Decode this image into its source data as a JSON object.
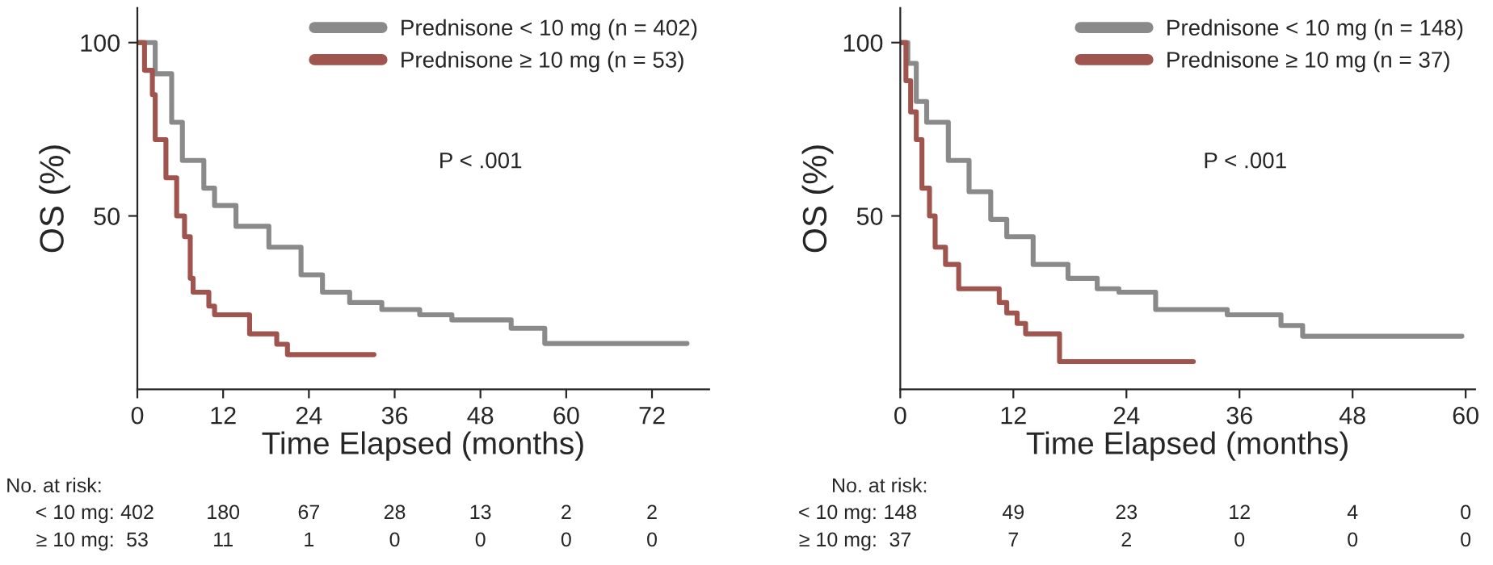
{
  "chart_data": [
    {
      "type": "step",
      "ylabel": "OS (%)",
      "xlabel": "Time Elapsed (months)",
      "xlim": [
        0,
        80
      ],
      "xticks": [
        0,
        12,
        24,
        36,
        48,
        60,
        72
      ],
      "ylim": [
        0,
        110
      ],
      "yticks": [
        50,
        100
      ],
      "legend": "top right",
      "marker": "none",
      "line_style": "solid",
      "annotations": [
        "P < .001",
        "No. at risk:",
        "< 10 mg:",
        "402",
        "180",
        "67",
        "28",
        "13",
        "2",
        "2",
        "≥ 10 mg:",
        "53",
        "11",
        "1",
        "0",
        "0",
        "0",
        "0"
      ],
      "series": [
        {
          "name": "Prednisone < 10 mg (n = 402)",
          "color": "#8a8a8a",
          "x": [
            0,
            2.5,
            4.8,
            6.3,
            9.3,
            10.8,
            13.8,
            18.4,
            22.9,
            25.9,
            29.7,
            34.2,
            39.5,
            44,
            52.3,
            57,
            76.9
          ],
          "values": [
            100,
            91,
            77,
            66,
            58,
            53,
            47,
            41,
            33,
            28,
            25,
            23,
            21.5,
            20,
            17.6,
            13.2,
            13.2
          ]
        },
        {
          "name": "Prednisone ≥ 10 mg (n = 53)",
          "color": "#a0544e",
          "x": [
            0,
            1,
            2.1,
            2.5,
            4,
            5.5,
            6.6,
            7.4,
            7.8,
            10,
            10.8,
            15.7,
            19.5,
            21,
            33.1
          ],
          "values": [
            100,
            92,
            85,
            72,
            61,
            50,
            44,
            32,
            28,
            24,
            21.5,
            16,
            13,
            10,
            10
          ]
        }
      ]
    },
    {
      "type": "step",
      "ylabel": "OS (%)",
      "xlabel": "Time Elapsed (months)",
      "xlim": [
        0,
        61
      ],
      "xticks": [
        0,
        12,
        24,
        36,
        48,
        60
      ],
      "ylim": [
        0,
        110
      ],
      "yticks": [
        50,
        100
      ],
      "legend": "top right",
      "marker": "none",
      "line_style": "solid",
      "annotations": [
        "P < .001",
        "No. at risk:",
        "< 10 mg:",
        "148",
        "49",
        "23",
        "12",
        "4",
        "0",
        "≥ 10 mg:",
        "37",
        "7",
        "2",
        "0",
        "0",
        "0"
      ],
      "series": [
        {
          "name": "Prednisone < 10 mg (n = 148)",
          "color": "#8a8a8a",
          "x": [
            0,
            0.8,
            1.7,
            2.8,
            5.1,
            7.3,
            9.6,
            11.3,
            14.1,
            17.8,
            20.9,
            23.2,
            27.1,
            34.7,
            40.4,
            42.7,
            59.6
          ],
          "values": [
            100,
            94,
            83,
            77,
            66,
            57,
            49,
            44,
            36,
            32,
            29,
            28,
            23,
            21.5,
            18.4,
            15.3,
            15.3
          ]
        },
        {
          "name": "Prednisone ≥ 10 mg (n = 37)",
          "color": "#a0544e",
          "x": [
            0,
            0.6,
            1.1,
            1.7,
            2.3,
            3.1,
            3.7,
            4.8,
            6.2,
            10.5,
            11.3,
            12.4,
            13.3,
            16.9,
            31.1
          ],
          "values": [
            100,
            89,
            80,
            72,
            58,
            50,
            41,
            36,
            29,
            25,
            22,
            19,
            16,
            8,
            8
          ]
        }
      ]
    }
  ]
}
